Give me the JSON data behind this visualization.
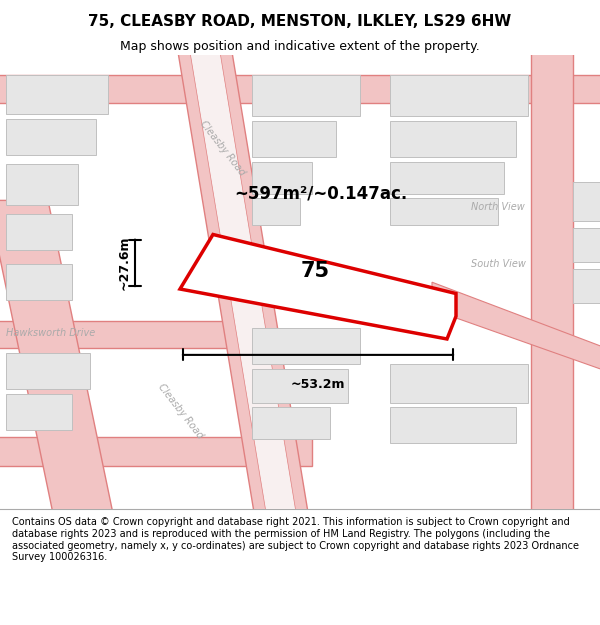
{
  "title": "75, CLEASBY ROAD, MENSTON, ILKLEY, LS29 6HW",
  "subtitle": "Map shows position and indicative extent of the property.",
  "footer": "Contains OS data © Crown copyright and database right 2021. This information is subject to Crown copyright and database rights 2023 and is reproduced with the permission of HM Land Registry. The polygons (including the associated geometry, namely x, y co-ordinates) are subject to Crown copyright and database rights 2023 Ordnance Survey 100026316.",
  "bg_color": "#f0f0f0",
  "map_bg": "#ffffff",
  "area_label": "~597m²/~0.147ac.",
  "plot_number": "75",
  "width_label": "~53.2m",
  "height_label": "~27.6m",
  "road_color": "#f2c4c4",
  "road_line_color": "#e08080",
  "plot_fill": "#ffffff",
  "plot_edge": "#dd0000",
  "label_road1": "Cleasby Road",
  "label_road2": "Cleasby Road",
  "label_hawksworth": "Hawksworth Drive",
  "label_north": "North View",
  "label_south": "South View"
}
